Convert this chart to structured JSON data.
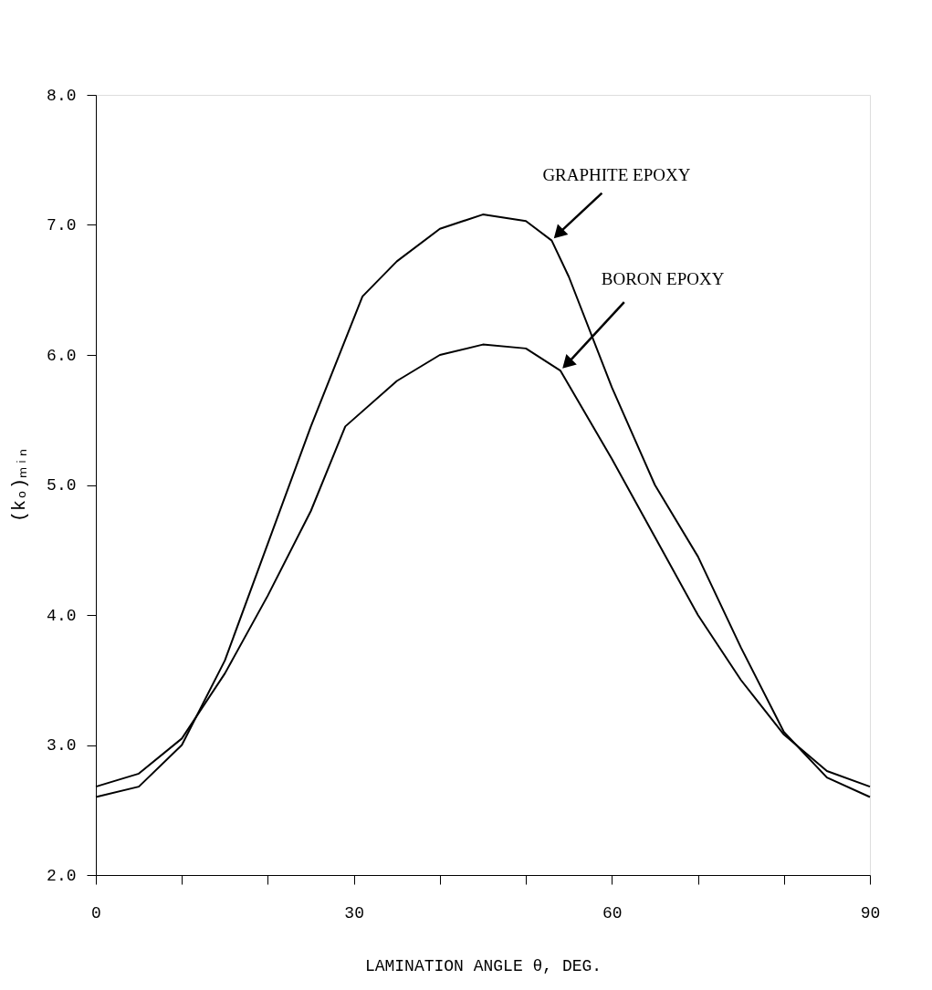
{
  "chart_data": {
    "type": "line",
    "xlabel": "LAMINATION ANGLE θ, DEG.",
    "ylabel": "(kₒ)ₘᵢₙ",
    "x": [
      0,
      5,
      10,
      15,
      20,
      25,
      31,
      35,
      40,
      45,
      50,
      53,
      55,
      60,
      65,
      70,
      75,
      80,
      85,
      90
    ],
    "series": [
      {
        "name": "GRAPHITE EPOXY",
        "color": "#000000",
        "values": [
          2.6,
          2.68,
          3.0,
          3.65,
          4.55,
          5.45,
          6.45,
          6.72,
          6.97,
          7.08,
          7.03,
          6.88,
          6.6,
          5.75,
          5.0,
          4.45,
          3.75,
          3.1,
          2.75,
          2.6
        ]
      },
      {
        "name": "BORON EPOXY",
        "color": "#000000",
        "x": [
          0,
          5,
          10,
          15,
          20,
          25,
          29,
          35,
          40,
          45,
          50,
          54,
          60,
          65,
          70,
          75,
          80,
          85,
          90
        ],
        "values": [
          2.68,
          2.78,
          3.05,
          3.55,
          4.15,
          4.8,
          5.45,
          5.8,
          6.0,
          6.08,
          6.05,
          5.88,
          5.2,
          4.6,
          4.0,
          3.5,
          3.08,
          2.8,
          2.68
        ]
      }
    ],
    "xlim": [
      0,
      90
    ],
    "xticks": [
      0,
      {
        "value": 10,
        "label": null
      },
      {
        "value": 20,
        "label": null
      },
      30,
      {
        "value": 40,
        "label": null
      },
      {
        "value": 50,
        "label": null
      },
      60,
      {
        "value": 70,
        "label": null
      },
      {
        "value": 80,
        "label": null
      },
      90
    ],
    "ylim": [
      2,
      8
    ],
    "yticks": [
      {
        "value": 2,
        "label": "2.0"
      },
      {
        "value": 3,
        "label": "3.0"
      },
      {
        "value": 4,
        "label": "4.0"
      },
      {
        "value": 5,
        "label": "5.0"
      },
      {
        "value": 6,
        "label": "6.0"
      },
      {
        "value": 7,
        "label": "7.0"
      },
      {
        "value": 8,
        "label": "8.0"
      }
    ],
    "grid": false,
    "marker": "none",
    "line_style": "solid"
  }
}
